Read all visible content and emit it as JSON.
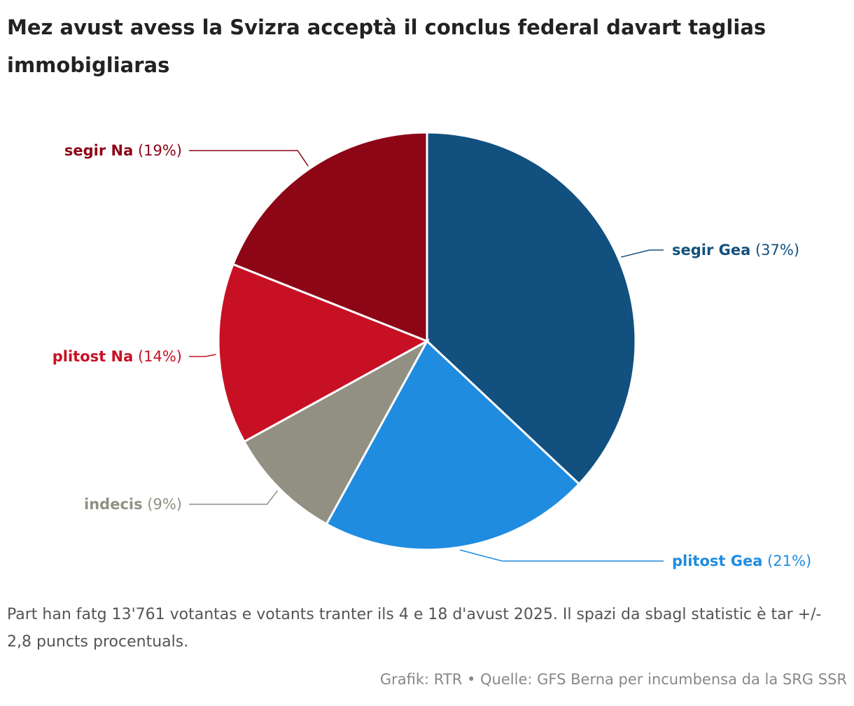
{
  "chart_data": {
    "type": "pie",
    "title": "Mez avust avess la Svizra acceptà il conclus federal davart taglias immobigliaras",
    "categories": [
      "segir Gea",
      "plitost Gea",
      "indecis",
      "plitost Na",
      "segir Na"
    ],
    "values": [
      37,
      21,
      9,
      14,
      19
    ],
    "value_labels": [
      "(37%)",
      "(21%)",
      "(9%)",
      "(14%)",
      "(19%)"
    ],
    "colors": [
      "#12507f",
      "#1f8ce0",
      "#929083",
      "#c81025",
      "#8c0616"
    ],
    "note": "Part han fatg 13'761 votantas e votants tranter ils 4 e 18 d'avust 2025. Il spazi da sbagl statistic è tar +/- 2,8 puncts procentuals.",
    "source": "Grafik: RTR • Quelle: GFS Berna per incumbensa da la SRG SSR"
  }
}
